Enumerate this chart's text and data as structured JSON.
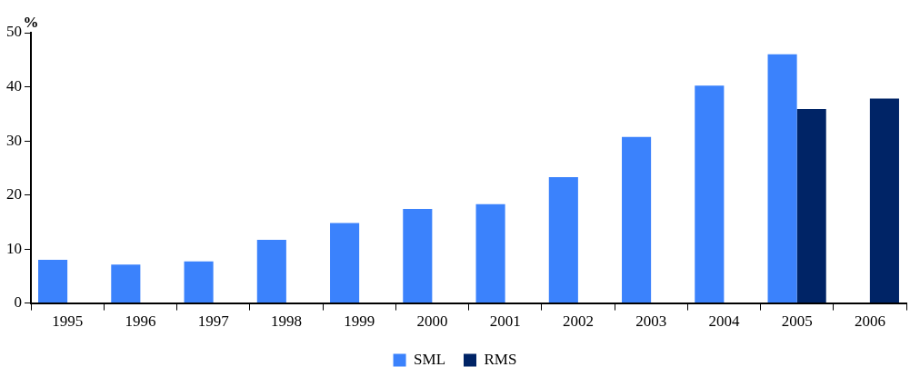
{
  "chart_data": {
    "type": "bar",
    "ylabel": "%",
    "categories": [
      "1995",
      "1996",
      "1997",
      "1998",
      "1999",
      "2000",
      "2001",
      "2002",
      "2003",
      "2004",
      "2005",
      "2006"
    ],
    "series": [
      {
        "name": "SML",
        "color": "#3b82fc",
        "values": [
          8.0,
          7.1,
          7.7,
          11.7,
          14.8,
          17.4,
          18.3,
          23.3,
          30.7,
          40.2,
          46.0,
          null
        ]
      },
      {
        "name": "RMS",
        "color": "#002466",
        "values": [
          null,
          null,
          null,
          null,
          null,
          null,
          null,
          null,
          null,
          null,
          35.9,
          37.8
        ]
      }
    ],
    "ylim": [
      0,
      50
    ],
    "yticks": [
      0,
      10,
      20,
      30,
      40,
      50
    ],
    "grid": false,
    "legend": "bottom"
  }
}
